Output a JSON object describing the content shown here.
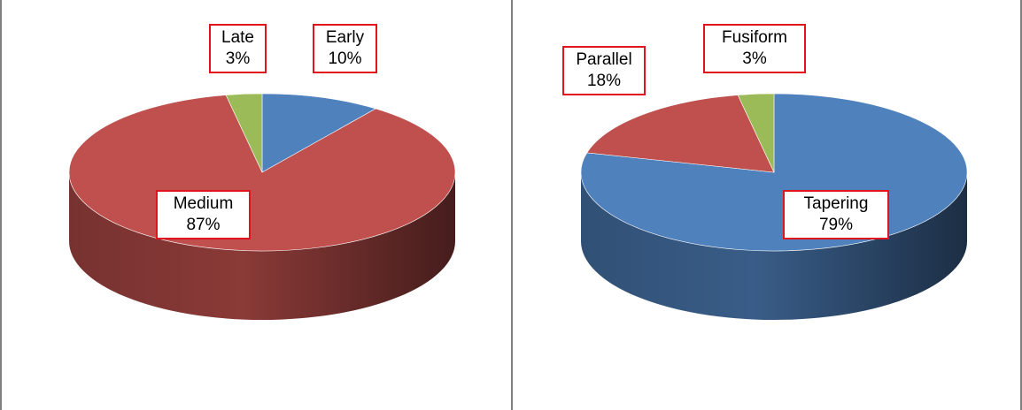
{
  "chart_data": [
    {
      "type": "pie",
      "style": "3d",
      "slices": [
        {
          "label": "Early",
          "value": 10,
          "display": "10%",
          "color": "#4f81bd"
        },
        {
          "label": "Medium",
          "value": 87,
          "display": "87%",
          "color": "#c0504d"
        },
        {
          "label": "Late",
          "value": 3,
          "display": "3%",
          "color": "#9bbb59"
        }
      ]
    },
    {
      "type": "pie",
      "style": "3d",
      "slices": [
        {
          "label": "Tapering",
          "value": 79,
          "display": "79%",
          "color": "#4f81bd"
        },
        {
          "label": "Parallel",
          "value": 18,
          "display": "18%",
          "color": "#c0504d"
        },
        {
          "label": "Fusiform",
          "value": 3,
          "display": "3%",
          "color": "#9bbb59"
        }
      ]
    }
  ],
  "colors": {
    "label_border": "#e0141d",
    "frame": "#7f7f7f"
  }
}
